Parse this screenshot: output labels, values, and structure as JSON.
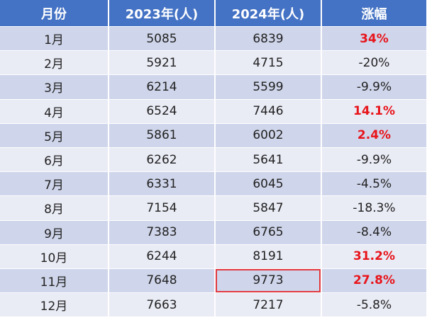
{
  "table": {
    "header": [
      "月份",
      "2023年(人)",
      "2024年(人)",
      "涨幅"
    ],
    "rows": [
      [
        "1月",
        "5085",
        "6839",
        "34%"
      ],
      [
        "2月",
        "5921",
        "4715",
        "-20%"
      ],
      [
        "3月",
        "6214",
        "5599",
        "-9.9%"
      ],
      [
        "4月",
        "6524",
        "7446",
        "14.1%"
      ],
      [
        "5月",
        "5861",
        "6002",
        "2.4%"
      ],
      [
        "6月",
        "6262",
        "5641",
        "-9.9%"
      ],
      [
        "7月",
        "6331",
        "6045",
        "-4.5%"
      ],
      [
        "8月",
        "7154",
        "5847",
        "-18.3%"
      ],
      [
        "9月",
        "7383",
        "6765",
        "-8.4%"
      ],
      [
        "10月",
        "6244",
        "8191",
        "31.2%"
      ],
      [
        "11月",
        "7648",
        "9773",
        "27.8%"
      ],
      [
        "12月",
        "7663",
        "7217",
        "-5.8%"
      ]
    ]
  }
}
